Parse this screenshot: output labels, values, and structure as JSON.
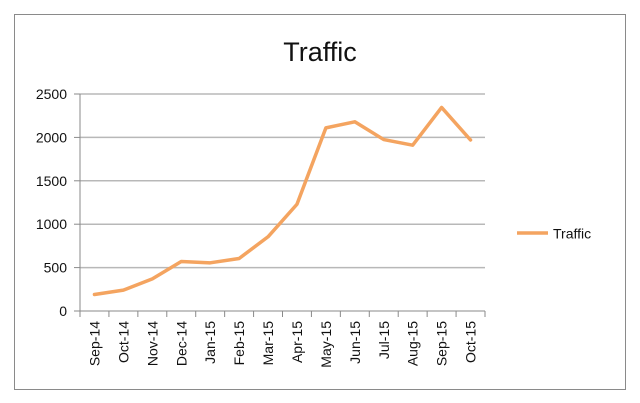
{
  "chart_data": {
    "type": "line",
    "title": "Traffic",
    "xlabel": "",
    "ylabel": "",
    "categories": [
      "Sep-14",
      "Oct-14",
      "Nov-14",
      "Dec-14",
      "Jan-15",
      "Feb-15",
      "Mar-15",
      "Apr-15",
      "May-15",
      "Jun-15",
      "Jul-15",
      "Aug-15",
      "Sep-15",
      "Oct-15"
    ],
    "series": [
      {
        "name": "Traffic",
        "color": "#F4A460",
        "values": [
          190,
          240,
          370,
          570,
          555,
          605,
          855,
          1230,
          2110,
          2180,
          1975,
          1910,
          2345,
          1970
        ]
      }
    ],
    "ylim": [
      0,
      2500
    ],
    "yticks": [
      0,
      500,
      1000,
      1500,
      2000,
      2500
    ],
    "grid": true,
    "legend_position": "right"
  }
}
